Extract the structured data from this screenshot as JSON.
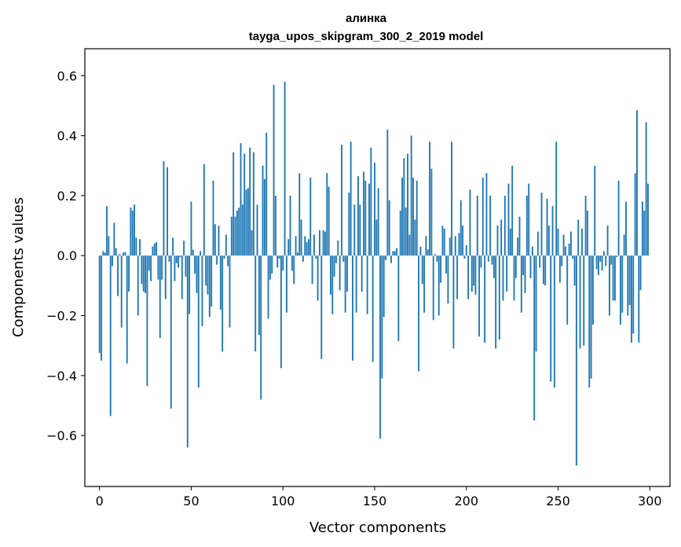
{
  "chart_data": {
    "type": "bar",
    "title": "алинка",
    "subtitle": "tayga_upos_skipgram_300_2_2019 model",
    "xlabel": "Vector components",
    "ylabel": "Components values",
    "xlim": [
      -8,
      311
    ],
    "ylim": [
      -0.77,
      0.69
    ],
    "xticks": [
      0,
      50,
      100,
      150,
      200,
      250,
      300
    ],
    "yticks": [
      -0.6,
      -0.4,
      -0.2,
      0.0,
      0.2,
      0.4,
      0.6
    ],
    "ytick_labels": [
      "−0.6",
      "−0.4",
      "−0.2",
      "0.0",
      "0.2",
      "0.4",
      "0.6"
    ],
    "bar_color": "#1f77b4",
    "values": [
      -0.325,
      -0.35,
      0.015,
      0.01,
      0.165,
      0.065,
      -0.535,
      -0.035,
      0.11,
      0.025,
      -0.135,
      0.005,
      -0.24,
      0.01,
      0.012,
      -0.36,
      -0.12,
      0.16,
      0.15,
      0.17,
      0.06,
      -0.2,
      0.055,
      -0.095,
      -0.12,
      -0.125,
      -0.435,
      -0.05,
      -0.085,
      0.03,
      0.04,
      0.045,
      -0.08,
      -0.275,
      -0.08,
      0.315,
      -0.145,
      0.295,
      -0.02,
      -0.51,
      0.06,
      -0.085,
      -0.025,
      -0.04,
      -0.005,
      -0.145,
      0.05,
      -0.07,
      -0.64,
      -0.195,
      0.18,
      0.02,
      -0.06,
      -0.125,
      -0.44,
      0.015,
      -0.235,
      0.305,
      -0.1,
      -0.13,
      -0.205,
      -0.17,
      0.25,
      0.105,
      -0.03,
      0.1,
      -0.18,
      -0.32,
      -0.01,
      0.07,
      -0.035,
      -0.24,
      0.13,
      0.345,
      0.13,
      0.15,
      0.16,
      0.375,
      0.17,
      0.34,
      0.22,
      0.225,
      0.36,
      0.085,
      0.345,
      -0.32,
      0.17,
      -0.265,
      -0.48,
      0.3,
      0.255,
      0.41,
      -0.21,
      -0.08,
      -0.06,
      0.57,
      0.2,
      -0.04,
      -0.01,
      -0.375,
      -0.05,
      0.58,
      -0.19,
      0.055,
      0.2,
      -0.05,
      -0.095,
      0.065,
      0.01,
      0.275,
      0.12,
      -0.02,
      0.065,
      0.045,
      0.055,
      0.26,
      -0.095,
      0.07,
      -0.01,
      -0.15,
      0.085,
      -0.345,
      0.085,
      0.08,
      0.275,
      0.23,
      -0.13,
      -0.195,
      -0.07,
      -0.025,
      0.05,
      -0.115,
      0.37,
      -0.02,
      -0.19,
      -0.12,
      0.21,
      0.38,
      -0.35,
      0.17,
      -0.19,
      0.265,
      0.17,
      -0.12,
      0.28,
      0.25,
      -0.195,
      0.24,
      0.36,
      -0.355,
      0.31,
      0.12,
      0.225,
      -0.61,
      -0.41,
      -0.205,
      -0.015,
      0.42,
      0.185,
      -0.025,
      0.015,
      0.015,
      0.025,
      -0.285,
      0.15,
      0.26,
      0.325,
      0.16,
      0.34,
      0.07,
      0.4,
      0.26,
      0.12,
      0.25,
      -0.385,
      0.03,
      -0.095,
      -0.19,
      0.065,
      0.02,
      0.38,
      0.29,
      -0.215,
      0.005,
      -0.02,
      -0.2,
      -0.09,
      0.1,
      0.09,
      -0.06,
      -0.16,
      0.06,
      0.38,
      -0.31,
      0.065,
      -0.145,
      0.075,
      0.185,
      0.1,
      -0.01,
      0.035,
      -0.145,
      0.22,
      -0.12,
      -0.1,
      -0.13,
      0.2,
      -0.27,
      -0.04,
      0.26,
      -0.29,
      0.275,
      -0.02,
      0.2,
      -0.03,
      -0.075,
      -0.31,
      0.1,
      -0.28,
      0.12,
      -0.15,
      0.2,
      -0.12,
      0.24,
      0.09,
      0.3,
      -0.15,
      -0.075,
      0.06,
      0.13,
      -0.19,
      -0.065,
      -0.125,
      0.2,
      0.24,
      -0.075,
      0.03,
      -0.55,
      -0.32,
      0.08,
      -0.04,
      0.21,
      -0.095,
      -0.1,
      0.19,
      0.1,
      -0.42,
      0.165,
      -0.44,
      0.38,
      0.09,
      -0.09,
      -0.035,
      0.07,
      0.03,
      -0.23,
      0.04,
      0.08,
      -0.01,
      -0.1,
      -0.7,
      0.12,
      -0.31,
      0.09,
      -0.3,
      0.2,
      0.15,
      -0.44,
      -0.41,
      -0.23,
      0.3,
      -0.045,
      -0.065,
      -0.02,
      -0.05,
      0.015,
      -0.035,
      0.1,
      -0.2,
      -0.03,
      -0.15,
      -0.15,
      -0.005,
      0.25,
      -0.23,
      -0.19,
      0.07,
      0.18,
      -0.2,
      -0.165,
      -0.29,
      -0.26,
      0.275,
      0.485,
      -0.29,
      -0.115,
      0.18,
      0.15,
      0.445,
      0.24
    ]
  }
}
